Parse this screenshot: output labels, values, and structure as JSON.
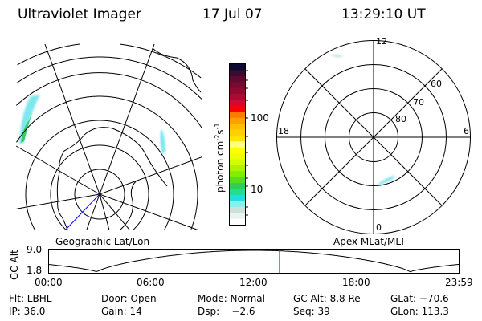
{
  "header": {
    "title": "Ultraviolet Imager",
    "date": "17 Jul 07",
    "time": "13:29:10 UT"
  },
  "colorbar": {
    "label": "photon cm",
    "label_sup1": "-2",
    "label_mid": "s",
    "label_sup2": "-1",
    "ticks": [
      "100",
      "10"
    ],
    "colors": [
      "#0c0a2e",
      "#3a0b30",
      "#5c0a30",
      "#780a32",
      "#900a30",
      "#ad0a30",
      "#d00a30",
      "#ff0000",
      "#ff7a00",
      "#ffa000",
      "#ffbe00",
      "#ffd000",
      "#ffe400",
      "#ffff80",
      "#ffff00",
      "#eeff00",
      "#d2ff00",
      "#b0f000",
      "#80ee00",
      "#55dd22",
      "#33cc55",
      "#22dd99",
      "#22dddd",
      "#88eeee",
      "#cce0dd",
      "#e8f4ee",
      "#ffffff"
    ]
  },
  "left_map": {
    "label": "Geographic Lat/Lon"
  },
  "right_map": {
    "label": "Apex MLat/MLT",
    "mlt_labels": [
      "12",
      "6",
      "0",
      "18"
    ],
    "mlat_labels": [
      "80",
      "70",
      "60"
    ]
  },
  "altitude_plot": {
    "ylabel": "GC Alt",
    "yticks": [
      "9.0",
      "1.8"
    ],
    "xticks": [
      "00:00",
      "06:00",
      "12:00",
      "18:00",
      "23:59"
    ],
    "current_time_hours": 13.486,
    "marker_color": "#ff0000"
  },
  "info": {
    "row1": [
      "Flt: LBHL",
      "Door: Open",
      "Mode: Normal",
      "GC Alt: 8.8 Re",
      "GLat: −70.6"
    ],
    "row2": [
      "IP: 36.0",
      "Gain: 14",
      "Dsp:    −2.6",
      "Seq: 39",
      "GLon: 113.3"
    ]
  }
}
